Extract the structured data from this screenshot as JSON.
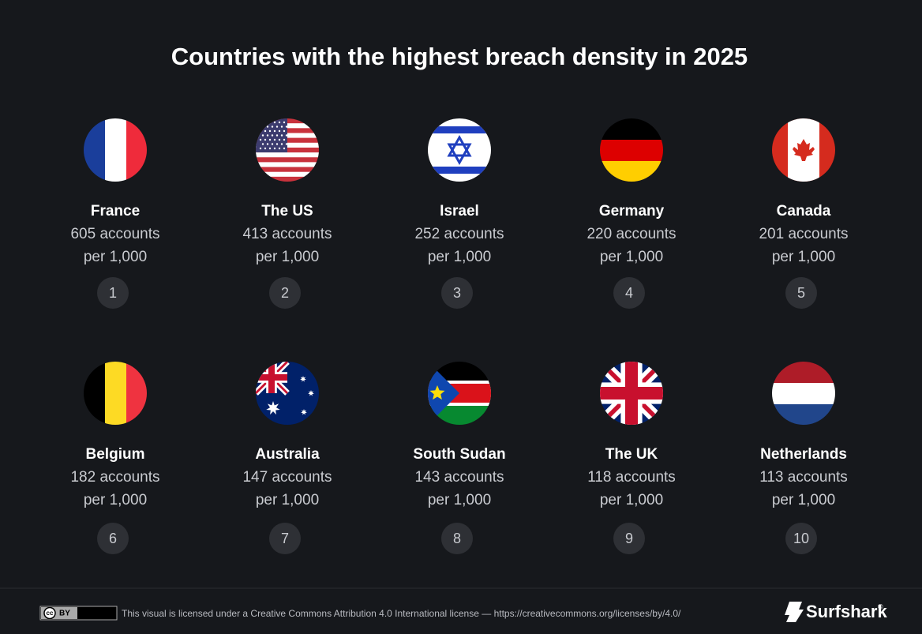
{
  "title": "Countries with the highest breach density in 2025",
  "items": [
    {
      "country": "France",
      "accounts": "605 accounts",
      "per": "per 1,000",
      "rank": 1
    },
    {
      "country": "The US",
      "accounts": "413 accounts",
      "per": "per 1,000",
      "rank": 2
    },
    {
      "country": "Israel",
      "accounts": "252 accounts",
      "per": "per 1,000",
      "rank": 3
    },
    {
      "country": "Germany",
      "accounts": "220 accounts",
      "per": "per 1,000",
      "rank": 4
    },
    {
      "country": "Canada",
      "accounts": "201 accounts",
      "per": "per 1,000",
      "rank": 5
    },
    {
      "country": "Belgium",
      "accounts": "182 accounts",
      "per": "per 1,000",
      "rank": 6
    },
    {
      "country": "Australia",
      "accounts": "147 accounts",
      "per": "per 1,000",
      "rank": 7
    },
    {
      "country": "South Sudan",
      "accounts": "143 accounts",
      "per": "per 1,000",
      "rank": 8
    },
    {
      "country": "The UK",
      "accounts": "118 accounts",
      "per": "per 1,000",
      "rank": 9
    },
    {
      "country": "Netherlands",
      "accounts": "113 accounts",
      "per": "per 1,000",
      "rank": 10
    }
  ],
  "footer": {
    "cc": "cc",
    "by": "BY",
    "license": "This visual is licensed under a Creative Commons Attribution 4.0 International license — https://creativecommons.org/licenses/by/4.0/",
    "brand": "Surfshark",
    "registered": "®"
  }
}
